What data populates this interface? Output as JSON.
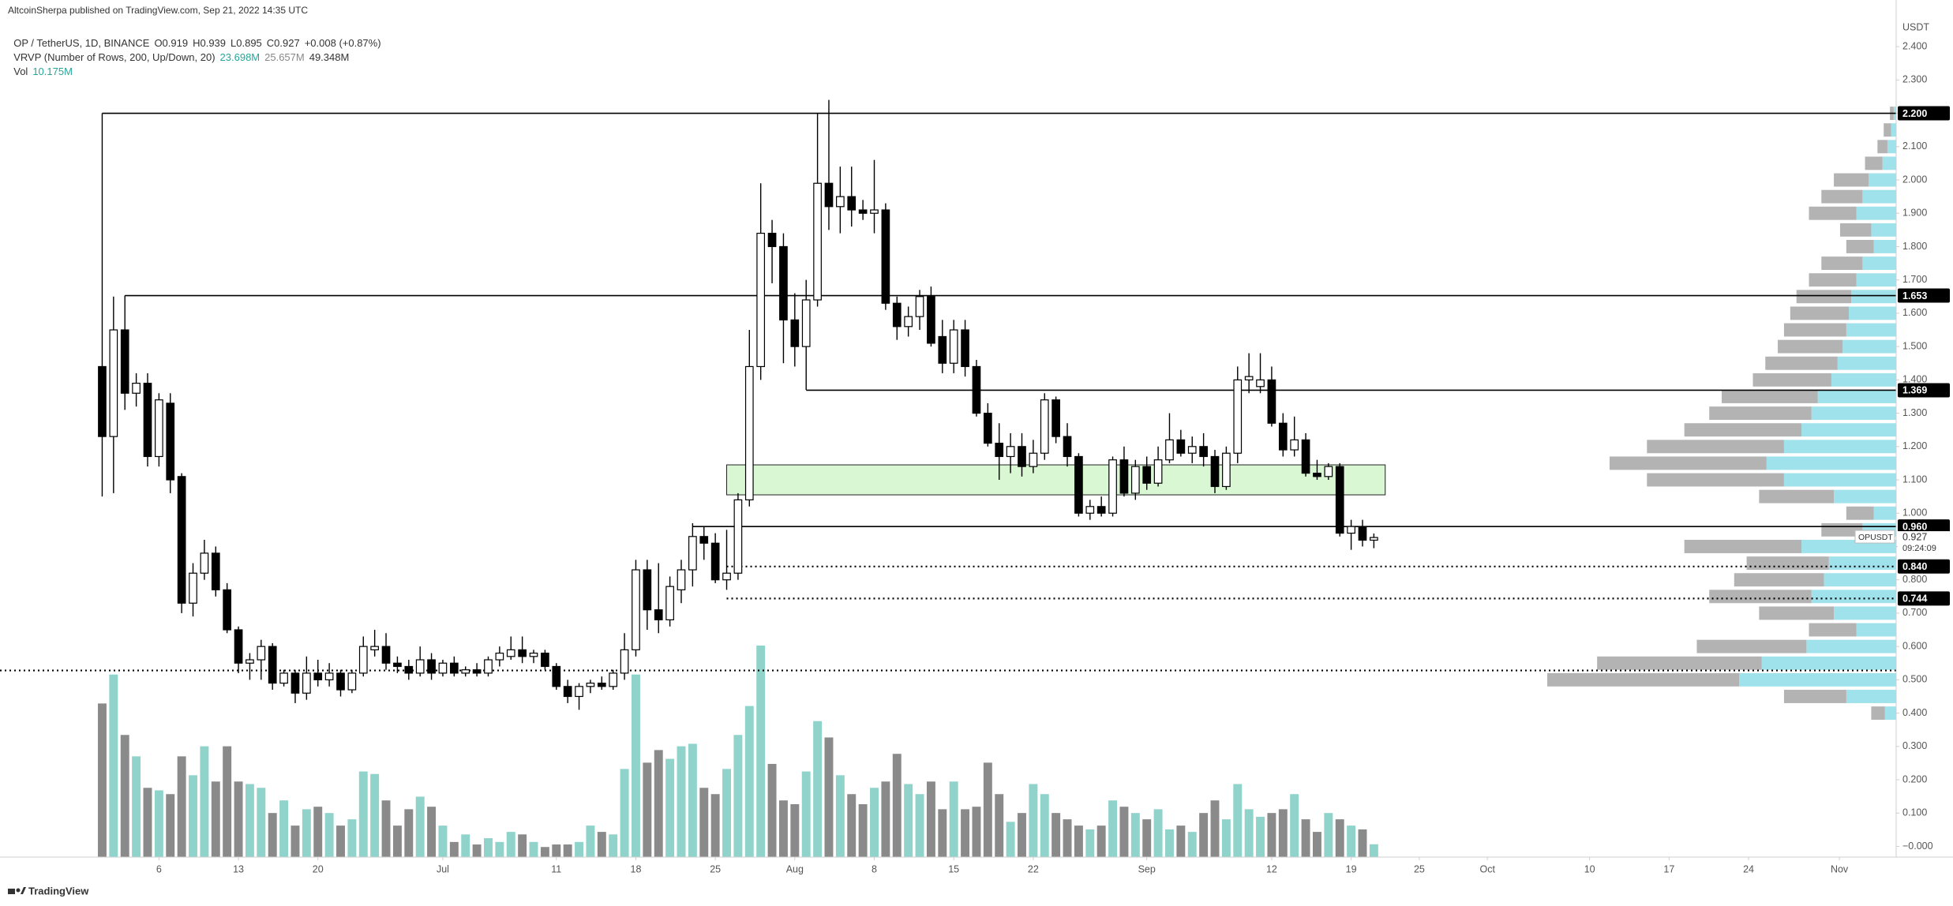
{
  "header": {
    "published": "AltcoinSherpa published on TradingView.com, Sep 21, 2022 14:35 UTC",
    "symbol": "OP / TetherUS, 1D, BINANCE",
    "ohlc": [
      "O0.919",
      "H0.939",
      "L0.895",
      "C0.927"
    ],
    "change": "+0.008 (+0.87%)",
    "vrvp": "VRVP (Number of Rows, 200, Up/Down, 20)",
    "vrvp_values": [
      "23.698M",
      "25.657M",
      "49.348M"
    ],
    "vol": "Vol",
    "vol_value": "10.175M"
  },
  "footer": "TradingView",
  "chart_data": {
    "type": "candlestick",
    "axis_unit": "USDT",
    "x": [
      "2022-06-01",
      "2022-06-02",
      "2022-06-03",
      "2022-06-04",
      "2022-06-05",
      "2022-06-06",
      "2022-06-07",
      "2022-06-08",
      "2022-06-09",
      "2022-06-10",
      "2022-06-11",
      "2022-06-12",
      "2022-06-13",
      "2022-06-14",
      "2022-06-15",
      "2022-06-16",
      "2022-06-17",
      "2022-06-18",
      "2022-06-19",
      "2022-06-20",
      "2022-06-21",
      "2022-06-22",
      "2022-06-23",
      "2022-06-24",
      "2022-06-25",
      "2022-06-26",
      "2022-06-27",
      "2022-06-28",
      "2022-06-29",
      "2022-06-30",
      "2022-07-01",
      "2022-07-02",
      "2022-07-03",
      "2022-07-04",
      "2022-07-05",
      "2022-07-06",
      "2022-07-07",
      "2022-07-08",
      "2022-07-09",
      "2022-07-10",
      "2022-07-11",
      "2022-07-12",
      "2022-07-13",
      "2022-07-14",
      "2022-07-15",
      "2022-07-16",
      "2022-07-17",
      "2022-07-18",
      "2022-07-19",
      "2022-07-20",
      "2022-07-21",
      "2022-07-22",
      "2022-07-23",
      "2022-07-24",
      "2022-07-25",
      "2022-07-26",
      "2022-07-27",
      "2022-07-28",
      "2022-07-29",
      "2022-07-30",
      "2022-07-31",
      "2022-08-01",
      "2022-08-02",
      "2022-08-03",
      "2022-08-04",
      "2022-08-05",
      "2022-08-06",
      "2022-08-07",
      "2022-08-08",
      "2022-08-09",
      "2022-08-10",
      "2022-08-11",
      "2022-08-12",
      "2022-08-13",
      "2022-08-14",
      "2022-08-15",
      "2022-08-16",
      "2022-08-17",
      "2022-08-18",
      "2022-08-19",
      "2022-08-20",
      "2022-08-21",
      "2022-08-22",
      "2022-08-23",
      "2022-08-24",
      "2022-08-25",
      "2022-08-26",
      "2022-08-27",
      "2022-08-28",
      "2022-08-29",
      "2022-08-30",
      "2022-08-31",
      "2022-09-01",
      "2022-09-02",
      "2022-09-03",
      "2022-09-04",
      "2022-09-05",
      "2022-09-06",
      "2022-09-07",
      "2022-09-08",
      "2022-09-09",
      "2022-09-10",
      "2022-09-11",
      "2022-09-12",
      "2022-09-13",
      "2022-09-14",
      "2022-09-15",
      "2022-09-16",
      "2022-09-17",
      "2022-09-18",
      "2022-09-19",
      "2022-09-20",
      "2022-09-21"
    ],
    "open": [
      1.44,
      1.23,
      1.55,
      1.36,
      1.39,
      1.17,
      1.33,
      1.11,
      0.73,
      0.82,
      0.88,
      0.77,
      0.65,
      0.55,
      0.56,
      0.6,
      0.49,
      0.52,
      0.46,
      0.52,
      0.5,
      0.52,
      0.47,
      0.52,
      0.59,
      0.6,
      0.55,
      0.54,
      0.52,
      0.56,
      0.52,
      0.55,
      0.52,
      0.53,
      0.52,
      0.56,
      0.57,
      0.59,
      0.57,
      0.58,
      0.54,
      0.48,
      0.45,
      0.48,
      0.49,
      0.48,
      0.52,
      0.59,
      0.83,
      0.71,
      0.68,
      0.77,
      0.83,
      0.93,
      0.91,
      0.8,
      0.82,
      1.04,
      1.44,
      1.84,
      1.8,
      1.58,
      1.5,
      1.64,
      1.99,
      1.92,
      1.95,
      1.91,
      1.9,
      1.91,
      1.63,
      1.56,
      1.59,
      1.65,
      1.53,
      1.45,
      1.55,
      1.44,
      1.3,
      1.21,
      1.17,
      1.2,
      1.14,
      1.18,
      1.34,
      1.23,
      1.17,
      1.0,
      1.02,
      1.0,
      1.16,
      1.06,
      1.14,
      1.09,
      1.16,
      1.22,
      1.18,
      1.2,
      1.17,
      1.08,
      1.18,
      1.4,
      1.38,
      1.4,
      1.27,
      1.19,
      1.22,
      1.12,
      1.11,
      1.14,
      0.94,
      0.96,
      0.919
    ],
    "high": [
      1.46,
      1.65,
      1.653,
      1.42,
      1.42,
      1.36,
      1.36,
      1.12,
      0.85,
      0.92,
      0.9,
      0.79,
      0.66,
      0.58,
      0.62,
      0.61,
      0.53,
      0.53,
      0.57,
      0.56,
      0.55,
      0.53,
      0.53,
      0.63,
      0.65,
      0.64,
      0.57,
      0.56,
      0.6,
      0.58,
      0.56,
      0.57,
      0.54,
      0.55,
      0.57,
      0.6,
      0.63,
      0.63,
      0.59,
      0.59,
      0.55,
      0.5,
      0.49,
      0.5,
      0.51,
      0.53,
      0.64,
      0.86,
      0.86,
      0.85,
      0.81,
      0.86,
      0.97,
      0.96,
      0.94,
      0.95,
      1.06,
      1.55,
      1.99,
      1.88,
      1.84,
      1.66,
      1.7,
      2.2,
      2.24,
      2.04,
      2.04,
      1.94,
      2.06,
      1.93,
      1.65,
      1.62,
      1.67,
      1.68,
      1.58,
      1.58,
      1.58,
      1.46,
      1.33,
      1.27,
      1.24,
      1.24,
      1.22,
      1.36,
      1.35,
      1.27,
      1.18,
      1.04,
      1.05,
      1.17,
      1.2,
      1.16,
      1.17,
      1.2,
      1.3,
      1.25,
      1.23,
      1.24,
      1.19,
      1.2,
      1.44,
      1.48,
      1.48,
      1.44,
      1.3,
      1.29,
      1.24,
      1.16,
      1.15,
      1.15,
      0.98,
      0.98,
      0.939
    ],
    "low": [
      1.05,
      1.06,
      1.31,
      1.32,
      1.14,
      1.14,
      1.06,
      0.7,
      0.69,
      0.8,
      0.75,
      0.64,
      0.52,
      0.5,
      0.5,
      0.47,
      0.48,
      0.43,
      0.44,
      0.48,
      0.48,
      0.45,
      0.46,
      0.51,
      0.57,
      0.53,
      0.52,
      0.5,
      0.51,
      0.5,
      0.51,
      0.51,
      0.51,
      0.51,
      0.51,
      0.54,
      0.56,
      0.55,
      0.55,
      0.53,
      0.47,
      0.43,
      0.41,
      0.46,
      0.47,
      0.47,
      0.5,
      0.57,
      0.65,
      0.64,
      0.66,
      0.73,
      0.78,
      0.86,
      0.79,
      0.77,
      0.8,
      1.02,
      1.4,
      1.69,
      1.45,
      1.44,
      1.37,
      1.62,
      1.85,
      1.84,
      1.86,
      1.88,
      1.84,
      1.61,
      1.52,
      1.53,
      1.55,
      1.5,
      1.42,
      1.42,
      1.41,
      1.29,
      1.2,
      1.1,
      1.12,
      1.11,
      1.12,
      1.16,
      1.21,
      1.14,
      0.99,
      0.98,
      0.99,
      0.99,
      1.05,
      1.04,
      1.07,
      1.08,
      1.15,
      1.17,
      1.15,
      1.14,
      1.06,
      1.07,
      1.15,
      1.36,
      1.36,
      1.26,
      1.17,
      1.17,
      1.11,
      1.1,
      1.1,
      0.93,
      0.89,
      0.9,
      0.895
    ],
    "close": [
      1.23,
      1.55,
      1.36,
      1.39,
      1.17,
      1.34,
      1.1,
      0.73,
      0.82,
      0.88,
      0.77,
      0.65,
      0.55,
      0.56,
      0.6,
      0.49,
      0.52,
      0.46,
      0.52,
      0.5,
      0.52,
      0.47,
      0.52,
      0.6,
      0.6,
      0.55,
      0.54,
      0.52,
      0.56,
      0.52,
      0.55,
      0.52,
      0.53,
      0.52,
      0.56,
      0.58,
      0.59,
      0.57,
      0.58,
      0.54,
      0.48,
      0.45,
      0.48,
      0.49,
      0.48,
      0.52,
      0.59,
      0.83,
      0.71,
      0.68,
      0.78,
      0.83,
      0.93,
      0.91,
      0.8,
      0.82,
      1.04,
      1.44,
      1.84,
      1.8,
      1.58,
      1.5,
      1.64,
      1.99,
      1.92,
      1.95,
      1.91,
      1.9,
      1.91,
      1.63,
      1.56,
      1.59,
      1.65,
      1.51,
      1.45,
      1.55,
      1.44,
      1.3,
      1.21,
      1.17,
      1.2,
      1.14,
      1.18,
      1.34,
      1.23,
      1.17,
      1.0,
      1.02,
      1.0,
      1.16,
      1.06,
      1.14,
      1.09,
      1.16,
      1.22,
      1.18,
      1.2,
      1.17,
      1.08,
      1.18,
      1.4,
      1.41,
      1.4,
      1.27,
      1.19,
      1.22,
      1.12,
      1.11,
      1.14,
      0.94,
      0.96,
      0.919,
      0.927
    ],
    "volume": [
      122,
      145,
      97,
      80,
      55,
      53,
      50,
      80,
      65,
      88,
      60,
      88,
      60,
      58,
      55,
      35,
      45,
      25,
      38,
      40,
      35,
      25,
      30,
      68,
      66,
      45,
      25,
      38,
      48,
      40,
      25,
      12,
      18,
      10,
      15,
      12,
      20,
      18,
      12,
      8,
      10,
      10,
      12,
      25,
      20,
      18,
      70,
      145,
      75,
      85,
      78,
      88,
      90,
      55,
      50,
      70,
      97,
      120,
      168,
      74,
      45,
      42,
      68,
      108,
      95,
      65,
      50,
      42,
      55,
      60,
      82,
      58,
      50,
      60,
      38,
      60,
      38,
      40,
      75,
      50,
      28,
      35,
      58,
      50,
      35,
      30,
      25,
      22,
      25,
      45,
      40,
      35,
      30,
      38,
      22,
      25,
      20,
      35,
      45,
      30,
      58,
      38,
      32,
      35,
      38,
      50,
      30,
      20,
      35,
      30,
      25,
      22,
      10.175
    ],
    "up_color": "#ffffff",
    "down_color": "#000000",
    "wick_color": "#000000",
    "volume_up_color": "#8fd3cb",
    "volume_down_color": "#8a8a8a",
    "xlim": [
      "2022-05-23",
      "2022-11-06"
    ],
    "xticks": [
      {
        "value": "2022-06-06",
        "label": "6"
      },
      {
        "value": "2022-06-13",
        "label": "13"
      },
      {
        "value": "2022-06-20",
        "label": "20"
      },
      {
        "value": "2022-07-01",
        "label": "Jul"
      },
      {
        "value": "2022-07-11",
        "label": "11"
      },
      {
        "value": "2022-07-18",
        "label": "18"
      },
      {
        "value": "2022-07-25",
        "label": "25"
      },
      {
        "value": "2022-08-01",
        "label": "Aug"
      },
      {
        "value": "2022-08-08",
        "label": "8"
      },
      {
        "value": "2022-08-15",
        "label": "15"
      },
      {
        "value": "2022-08-22",
        "label": "22"
      },
      {
        "value": "2022-09-01",
        "label": "Sep"
      },
      {
        "value": "2022-09-12",
        "label": "12"
      },
      {
        "value": "2022-09-19",
        "label": "19"
      },
      {
        "value": "2022-09-25",
        "label": "25"
      },
      {
        "value": "2022-10-01",
        "label": "Oct"
      },
      {
        "value": "2022-10-10",
        "label": "10"
      },
      {
        "value": "2022-10-17",
        "label": "17"
      },
      {
        "value": "2022-10-24",
        "label": "24"
      },
      {
        "value": "2022-11-01",
        "label": "Nov"
      }
    ],
    "ylim": [
      -0.032,
      2.54
    ],
    "yticks": [
      {
        "value": 0,
        "label": "−0.000"
      },
      {
        "value": 0.1,
        "label": "0.100"
      },
      {
        "value": 0.2,
        "label": "0.200"
      },
      {
        "value": 0.3,
        "label": "0.300"
      },
      {
        "value": 0.4,
        "label": "0.400"
      },
      {
        "value": 0.5,
        "label": "0.500"
      },
      {
        "value": 0.6,
        "label": "0.600"
      },
      {
        "value": 0.7,
        "label": "0.700"
      },
      {
        "value": 0.8,
        "label": "0.800"
      },
      {
        "value": 0.9,
        "label": "0.900"
      },
      {
        "value": 1,
        "label": "1.000"
      },
      {
        "value": 1.1,
        "label": "1.100"
      },
      {
        "value": 1.2,
        "label": "1.200"
      },
      {
        "value": 1.3,
        "label": "1.300"
      },
      {
        "value": 1.4,
        "label": "1.400"
      },
      {
        "value": 1.5,
        "label": "1.500"
      },
      {
        "value": 1.6,
        "label": "1.600"
      },
      {
        "value": 1.7,
        "label": "1.700"
      },
      {
        "value": 1.8,
        "label": "1.800"
      },
      {
        "value": 1.9,
        "label": "1.900"
      },
      {
        "value": 2,
        "label": "2.000"
      },
      {
        "value": 2.1,
        "label": "2.100"
      },
      {
        "value": 2.2,
        "label": "2.200"
      },
      {
        "value": 2.3,
        "label": "2.300"
      },
      {
        "value": 2.4,
        "label": "2.400"
      }
    ],
    "grid": false,
    "levels": [
      {
        "value": 2.2,
        "label": "2.200",
        "from": "2022-06-01",
        "style": "solid"
      },
      {
        "value": 1.653,
        "label": "1.653",
        "from": "2022-06-03",
        "style": "solid"
      },
      {
        "value": 1.369,
        "label": "1.369",
        "from": "2022-08-02",
        "style": "solid"
      },
      {
        "value": 0.96,
        "label": "0.960",
        "from": "2022-07-23",
        "style": "solid"
      },
      {
        "value": 0.84,
        "label": "0.840",
        "from": "2022-07-26",
        "style": "dotted"
      },
      {
        "value": 0.744,
        "label": "0.744",
        "from": "2022-07-26",
        "style": "dotted"
      },
      {
        "value": 0.528,
        "style": "dotted"
      }
    ],
    "zone": {
      "from": "2022-07-26",
      "to": "2022-09-22",
      "low": 1.055,
      "high": 1.145,
      "color": "#d9f7d2"
    },
    "last": {
      "symbol": "OPUSDT",
      "value": 0.927,
      "label": "0.927",
      "countdown": "09:24:09"
    },
    "volume_profile": {
      "prices": [
        0.4,
        0.45,
        0.5,
        0.55,
        0.6,
        0.65,
        0.7,
        0.75,
        0.8,
        0.85,
        0.9,
        0.95,
        1.0,
        1.05,
        1.1,
        1.15,
        1.2,
        1.25,
        1.3,
        1.35,
        1.4,
        1.45,
        1.5,
        1.55,
        1.6,
        1.65,
        1.7,
        1.75,
        1.8,
        1.85,
        1.9,
        1.95,
        2.0,
        2.05,
        2.1,
        2.15,
        2.2
      ],
      "up": [
        9,
        40,
        126,
        108,
        72,
        32,
        50,
        68,
        58,
        54,
        76,
        27,
        18,
        50,
        90,
        104,
        90,
        76,
        68,
        63,
        52,
        47,
        43,
        40,
        38,
        36,
        32,
        27,
        18,
        20,
        32,
        27,
        22,
        11,
        7,
        4,
        2
      ],
      "down": [
        11,
        50,
        154,
        132,
        88,
        38,
        60,
        82,
        72,
        66,
        94,
        33,
        22,
        60,
        110,
        126,
        110,
        94,
        82,
        77,
        63,
        58,
        52,
        50,
        47,
        44,
        38,
        33,
        22,
        25,
        38,
        33,
        28,
        14,
        8,
        6,
        3
      ],
      "up_color": "#9fe2ec",
      "down_color": "#b3b3b3"
    }
  }
}
